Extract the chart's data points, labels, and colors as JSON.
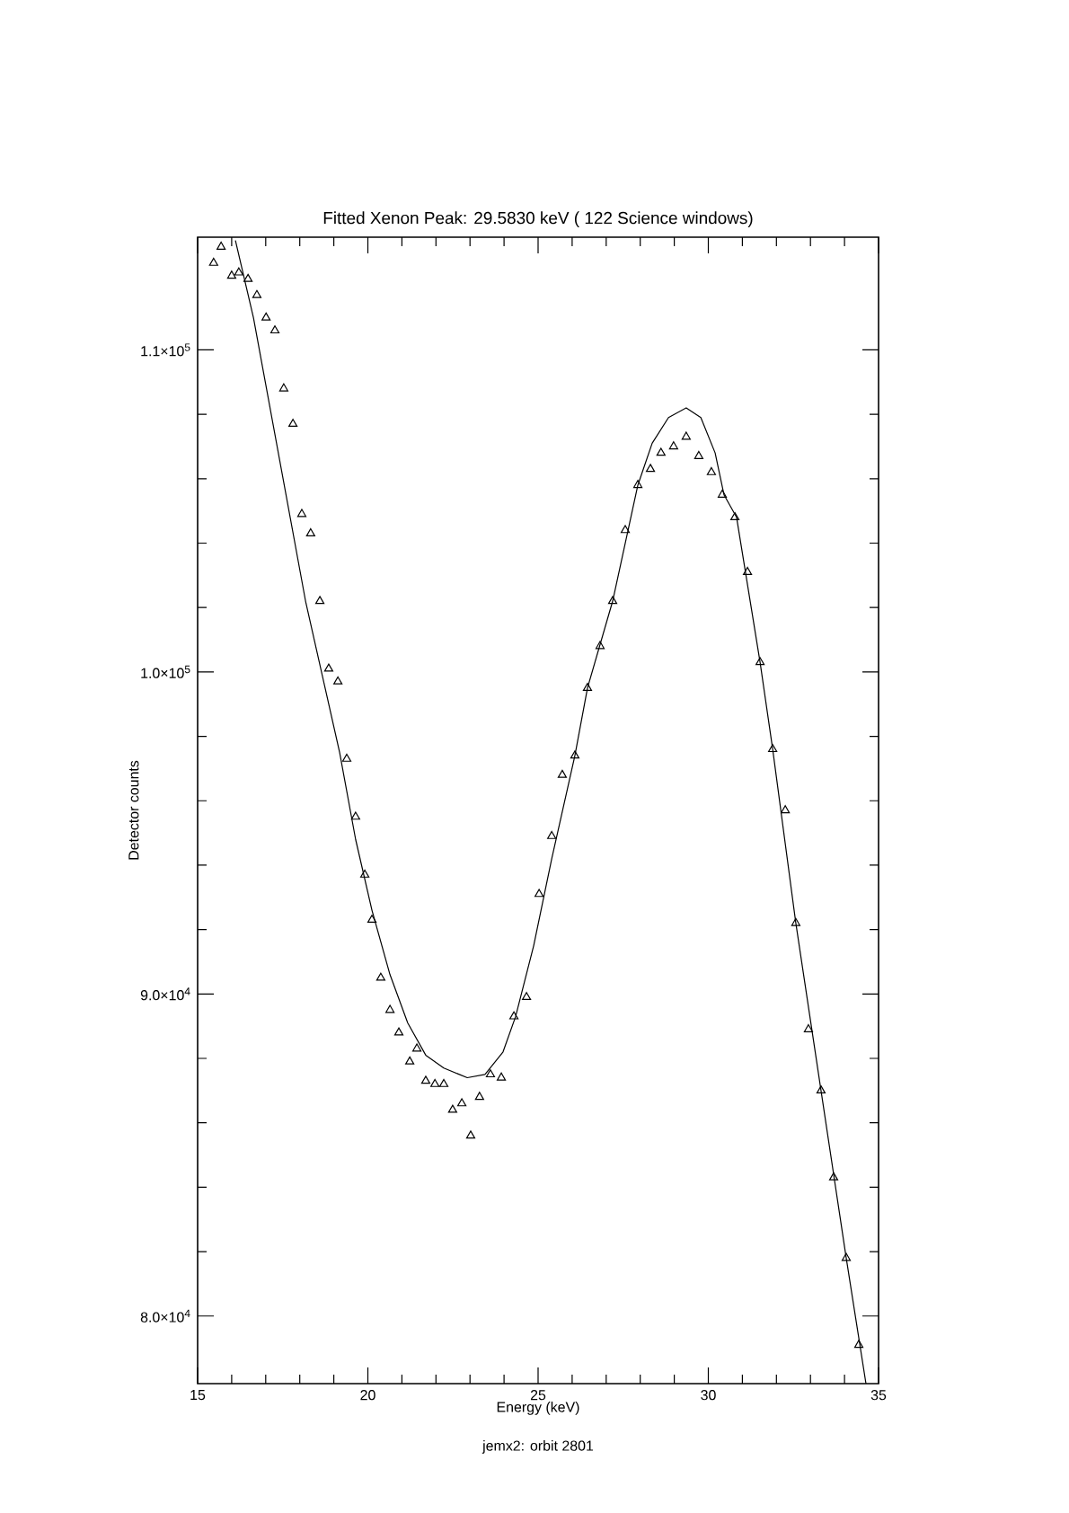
{
  "chart_data": {
    "type": "scatter",
    "title": "Fitted Xenon Peak: 29.5830 keV ( 122 Science windows)",
    "xlabel": "Energy (keV)",
    "ylabel": "Detector counts",
    "annotations": [
      "jemx2: orbit 2801"
    ],
    "xlim": [
      15,
      35
    ],
    "ylim": [
      77900,
      113500
    ],
    "xticks": [
      15,
      20,
      25,
      30,
      35
    ],
    "yticks": [
      {
        "value": 80000,
        "label": "8.0×10$^{4}$"
      },
      {
        "value": 90000,
        "label": "9.0×10$^{4}$"
      },
      {
        "value": 100000,
        "label": "1.0×10$^{5}$"
      },
      {
        "value": 110000,
        "label": "1.1×10$^{5}$"
      }
    ],
    "series": [
      {
        "marker": "triangle",
        "color": "#000000",
        "x": [
          15.47,
          15.69,
          16.0,
          16.21,
          16.48,
          16.74,
          17.01,
          17.27,
          17.53,
          17.8,
          18.06,
          18.32,
          18.59,
          18.85,
          19.12,
          19.38,
          19.64,
          19.91,
          20.12,
          20.38,
          20.65,
          20.91,
          21.23,
          21.44,
          21.7,
          21.97,
          22.23,
          22.49,
          22.76,
          23.02,
          23.28,
          23.6,
          23.92,
          24.29,
          24.66,
          25.03,
          25.4,
          25.71,
          26.08,
          26.45,
          26.82,
          27.19,
          27.56,
          27.93,
          28.3,
          28.61,
          28.98,
          29.35,
          29.72,
          30.09,
          30.41,
          30.78,
          31.15,
          31.52,
          31.89,
          32.26,
          32.57,
          32.94,
          33.31,
          33.68,
          34.05,
          34.42
        ],
        "values": [
          112700,
          113200,
          112300,
          112400,
          112200,
          111700,
          111000,
          110600,
          108800,
          107700,
          104900,
          104300,
          102200,
          100100,
          99700,
          97300,
          95500,
          93700,
          92300,
          90500,
          89500,
          88800,
          87900,
          88300,
          87300,
          87200,
          87200,
          86400,
          86600,
          85600,
          86800,
          87500,
          87400,
          89300,
          89900,
          93100,
          94900,
          96800,
          97400,
          99500,
          100800,
          102200,
          104400,
          105800,
          106300,
          106800,
          107000,
          107300,
          106700,
          106200,
          105500,
          104800,
          103100,
          100300,
          97600,
          95700,
          92200,
          88900,
          87000,
          84300,
          81800,
          79100
        ]
      },
      {
        "type": "line",
        "marker": "none",
        "color": "#000000",
        "x": [
          16.11,
          16.64,
          18.17,
          19.17,
          19.64,
          20.12,
          20.65,
          21.17,
          21.7,
          22.23,
          22.92,
          23.44,
          23.97,
          24.34,
          24.87,
          25.4,
          26.08,
          26.45,
          27.19,
          27.93,
          28.35,
          28.83,
          29.35,
          29.78,
          30.2,
          30.46,
          30.83,
          31.52,
          31.89,
          32.57,
          33.31,
          34.05,
          34.63
        ],
        "values": [
          113400,
          111000,
          102200,
          97500,
          94800,
          92600,
          90600,
          89100,
          88100,
          87700,
          87400,
          87500,
          88200,
          89300,
          91500,
          94200,
          97400,
          99500,
          102200,
          105800,
          107100,
          107900,
          108200,
          107900,
          106800,
          105500,
          104800,
          100300,
          97600,
          92200,
          87000,
          81800,
          77900
        ]
      }
    ]
  }
}
